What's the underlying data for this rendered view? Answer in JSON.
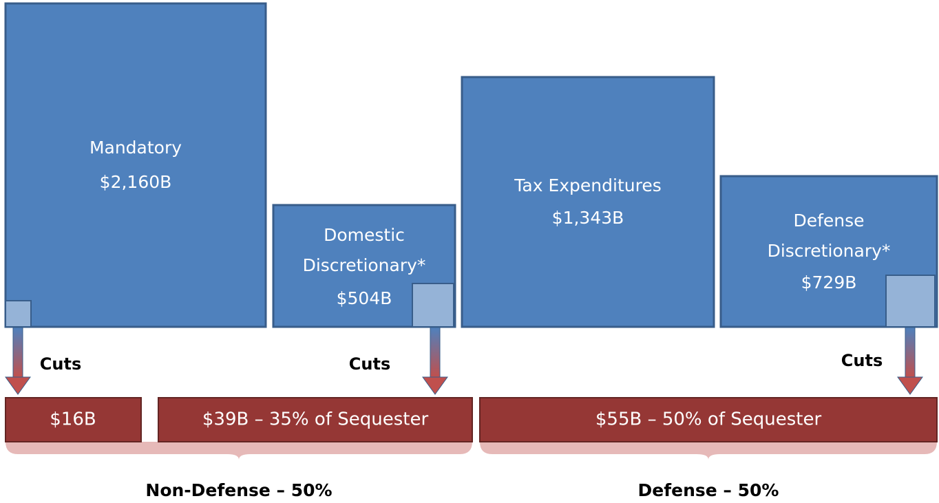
{
  "boxes": [
    {
      "lines": [
        "Mandatory",
        "$2,160B"
      ]
    },
    {
      "lines": [
        "Domestic",
        "Discretionary*",
        "$504B"
      ]
    },
    {
      "lines": [
        "Tax Expenditures",
        "$1,343B"
      ]
    },
    {
      "lines": [
        "Defense",
        "Discretionary*",
        "$729B"
      ]
    }
  ],
  "cuts": [
    "Cuts",
    "Cuts",
    "Cuts"
  ],
  "bars": [
    "$16B",
    "$39B – 35% of Sequester",
    "$55B – 50% of Sequester"
  ],
  "groups": [
    "Non-Defense – 50%",
    "Defense – 50%"
  ]
}
